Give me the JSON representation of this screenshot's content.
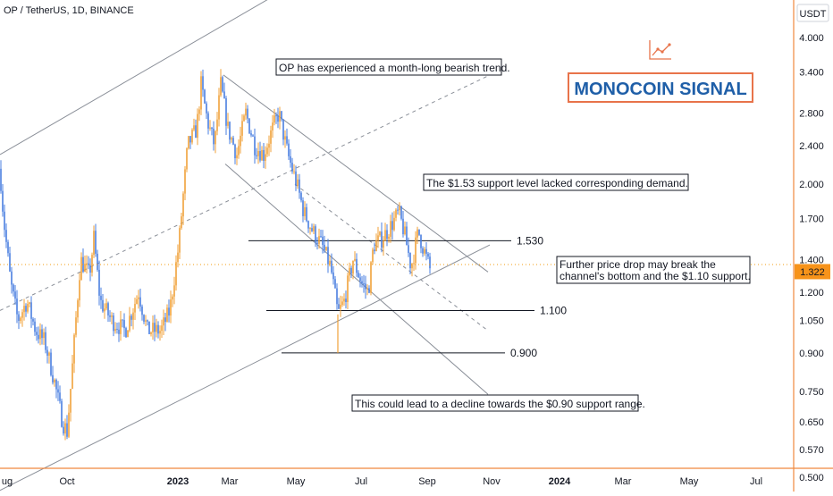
{
  "header": {
    "symbol_line": "OP / TetherUS, 1D, BINANCE",
    "currency": "USDT"
  },
  "brand": {
    "name": "MONOCOIN SIGNAL",
    "logo_icon": "line-chart-icon",
    "accent_color": "#e8734a",
    "text_color": "#1f5fa8"
  },
  "price_scale": {
    "ticks": [
      "4.000",
      "3.400",
      "2.800",
      "2.400",
      "2.000",
      "1.700",
      "1.400",
      "1.200",
      "1.050",
      "0.900",
      "0.750",
      "0.650",
      "0.570",
      "0.500"
    ],
    "tick_values": [
      4.0,
      3.4,
      2.8,
      2.4,
      2.0,
      1.7,
      1.4,
      1.2,
      1.05,
      0.9,
      0.75,
      0.65,
      0.57,
      0.5
    ],
    "current_price": "1.322",
    "current_value": 1.322,
    "scale": "log"
  },
  "time_axis": {
    "labels": [
      "ug",
      "Oct",
      "2023",
      "Mar",
      "May",
      "Jul",
      "Sep",
      "Nov",
      "2024",
      "Mar",
      "May",
      "Jul"
    ],
    "bold": [
      "2023",
      "2024"
    ]
  },
  "levels": [
    {
      "label": "1.530",
      "value": 1.53
    },
    {
      "label": "1.100",
      "value": 1.1
    },
    {
      "label": "0.900",
      "value": 0.9
    }
  ],
  "annotations": [
    {
      "lines": [
        "OP has experienced a month-long bearish trend."
      ]
    },
    {
      "lines": [
        "The $1.53 support level lacked corresponding demand."
      ]
    },
    {
      "lines": [
        "Further price drop may break the",
        "channel's bottom and the $1.10 support."
      ]
    },
    {
      "lines": [
        "This could lead to a decline towards the $0.90 support range."
      ]
    }
  ],
  "chart_data": {
    "type": "candlestick",
    "series": [
      {
        "anchors": [
          [
            0,
            2.15
          ],
          [
            4,
            1.7
          ],
          [
            12,
            1.25
          ],
          [
            20,
            1.05
          ],
          [
            30,
            1.15
          ],
          [
            40,
            1.0
          ],
          [
            50,
            0.95
          ],
          [
            60,
            0.8
          ],
          [
            70,
            0.65
          ],
          [
            75,
            0.62
          ],
          [
            80,
            0.8
          ],
          [
            90,
            1.4
          ],
          [
            100,
            1.3
          ],
          [
            105,
            1.55
          ],
          [
            112,
            1.15
          ],
          [
            125,
            1.05
          ],
          [
            140,
            1.0
          ],
          [
            155,
            1.2
          ],
          [
            165,
            1.0
          ],
          [
            180,
            1.0
          ],
          [
            190,
            1.1
          ],
          [
            200,
            1.5
          ],
          [
            210,
            2.4
          ],
          [
            220,
            2.6
          ],
          [
            225,
            3.2
          ],
          [
            232,
            2.7
          ],
          [
            240,
            2.4
          ],
          [
            247,
            3.2
          ],
          [
            255,
            2.6
          ],
          [
            265,
            2.3
          ],
          [
            275,
            2.8
          ],
          [
            285,
            2.4
          ],
          [
            295,
            2.3
          ],
          [
            305,
            2.6
          ],
          [
            312,
            2.8
          ],
          [
            322,
            2.3
          ],
          [
            332,
            2.0
          ],
          [
            340,
            1.75
          ],
          [
            350,
            1.6
          ],
          [
            360,
            1.5
          ],
          [
            370,
            1.35
          ],
          [
            378,
            1.08
          ],
          [
            385,
            1.15
          ],
          [
            395,
            1.4
          ],
          [
            405,
            1.25
          ],
          [
            412,
            1.2
          ],
          [
            418,
            1.5
          ],
          [
            428,
            1.55
          ],
          [
            438,
            1.65
          ],
          [
            446,
            1.75
          ],
          [
            452,
            1.6
          ],
          [
            460,
            1.35
          ],
          [
            468,
            1.6
          ],
          [
            475,
            1.45
          ],
          [
            482,
            1.32
          ]
        ]
      }
    ],
    "ylim": [
      0.48,
      4.3
    ],
    "trendlines": [
      {
        "style": "solid",
        "from": [
          0,
          0.47
        ],
        "to": [
          548,
          1.5
        ]
      },
      {
        "style": "solid",
        "from": [
          0,
          2.3
        ],
        "to": [
          405,
          6.2
        ]
      },
      {
        "style": "dashed",
        "from": [
          0,
          1.1
        ],
        "to": [
          548,
          3.35
        ]
      },
      {
        "style": "solid",
        "from": [
          250,
          3.35
        ],
        "to": [
          546,
          1.32
        ]
      },
      {
        "style": "solid",
        "from": [
          252,
          2.2
        ],
        "to": [
          546,
          0.74
        ]
      },
      {
        "style": "dashed",
        "from": [
          330,
          2.0
        ],
        "to": [
          546,
          1.0
        ]
      }
    ],
    "xlabel": "",
    "ylabel": ""
  }
}
